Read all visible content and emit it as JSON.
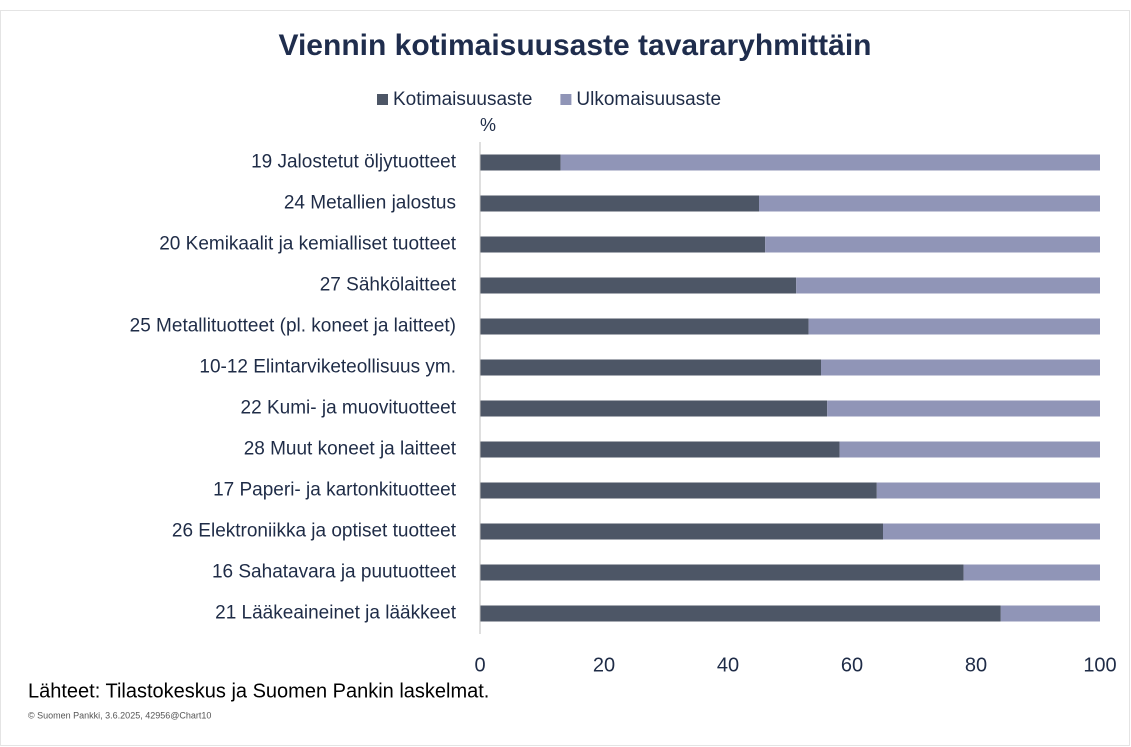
{
  "chart_data": {
    "type": "stacked_barh",
    "title": "Viennin kotimaisuusaste tavararyhmittäin",
    "xlabel": "%",
    "categories": [
      "19 Jalostetut öljytuotteet",
      "24 Metallien jalostus",
      "20 Kemikaalit ja kemialliset tuotteet",
      "27 Sähkölaitteet",
      "25 Metallituotteet (pl. koneet ja laitteet)",
      "10-12 Elintarviketeollisuus ym.",
      "22 Kumi- ja muovituotteet",
      "28 Muut koneet ja laitteet",
      "17 Paperi- ja kartonkituotteet",
      "26 Elektroniikka ja optiset tuotteet",
      "16 Sahatavara ja puutuotteet",
      "21 Lääkeaineinet ja lääkkeet"
    ],
    "series": [
      {
        "name": "Kotimaisuusaste",
        "color": "#4d5666",
        "values": [
          13,
          45,
          46,
          51,
          53,
          55,
          56,
          58,
          64,
          65,
          78,
          84
        ]
      },
      {
        "name": "Ulkomaisuusaste",
        "color": "#9095b7",
        "values": [
          87,
          55,
          54,
          49,
          47,
          45,
          44,
          42,
          36,
          35,
          22,
          16
        ]
      }
    ],
    "xlim": [
      0,
      100
    ],
    "xticks": [
      0,
      20,
      40,
      60,
      80,
      100
    ],
    "grid": false,
    "legend": "top",
    "source": "Lähteet: Tilastokeskus ja Suomen Pankin laskelmat.",
    "credit": "© Suomen Pankki, 3.6.2025, 42956@Chart10"
  }
}
